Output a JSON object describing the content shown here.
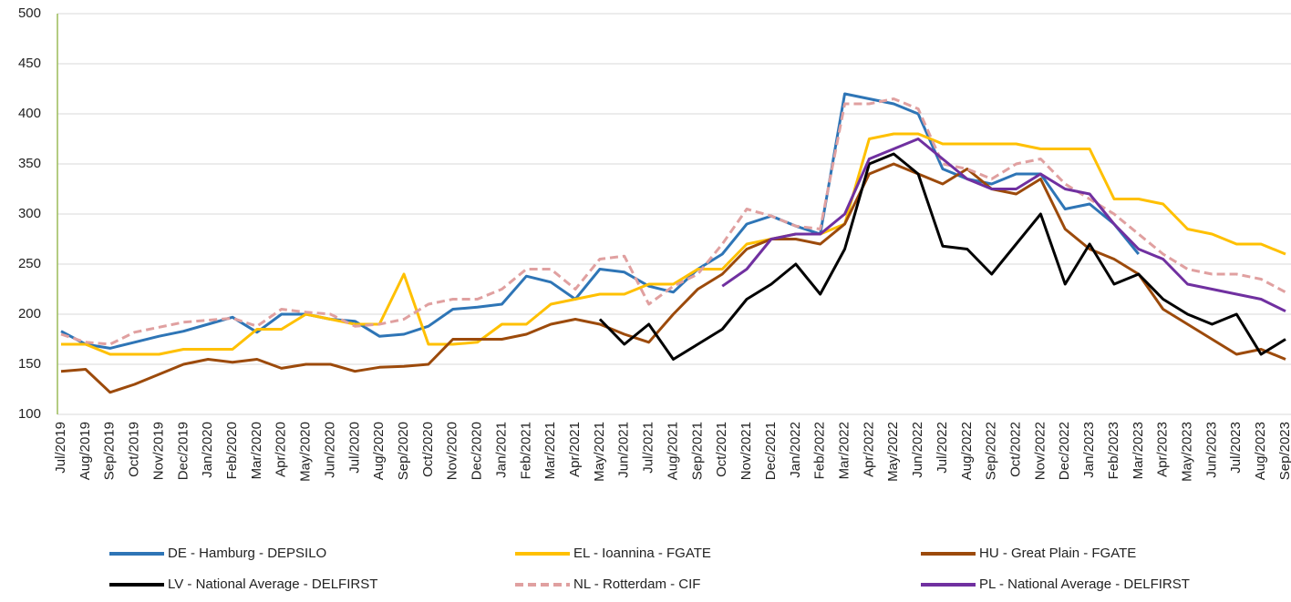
{
  "chart_data": {
    "type": "line",
    "categories": [
      "Jul/2019",
      "Aug/2019",
      "Sep/2019",
      "Oct/2019",
      "Nov/2019",
      "Dec/2019",
      "Jan/2020",
      "Feb/2020",
      "Mar/2020",
      "Apr/2020",
      "May/2020",
      "Jun/2020",
      "Jul/2020",
      "Aug/2020",
      "Sep/2020",
      "Oct/2020",
      "Nov/2020",
      "Dec/2020",
      "Jan/2021",
      "Feb/2021",
      "Mar/2021",
      "Apr/2021",
      "May/2021",
      "Jun/2021",
      "Jul/2021",
      "Aug/2021",
      "Sep/2021",
      "Oct/2021",
      "Nov/2021",
      "Dec/2021",
      "Jan/2022",
      "Feb/2022",
      "Mar/2022",
      "Apr/2022",
      "May/2022",
      "Jun/2022",
      "Jul/2022",
      "Aug/2022",
      "Sep/2022",
      "Oct/2022",
      "Nov/2022",
      "Dec/2022",
      "Jan/2023",
      "Feb/2023",
      "Mar/2023",
      "Apr/2023",
      "May/2023",
      "Jun/2023",
      "Jul/2023",
      "Aug/2023",
      "Sep/2023"
    ],
    "series": [
      {
        "name": "DE - Hamburg - DEPSILO",
        "color": "#2e75b6",
        "values": [
          183,
          170,
          166,
          172,
          178,
          183,
          190,
          197,
          182,
          200,
          200,
          195,
          193,
          178,
          180,
          188,
          205,
          207,
          210,
          238,
          232,
          215,
          245,
          242,
          228,
          222,
          245,
          260,
          290,
          298,
          288,
          280,
          420,
          415,
          410,
          400,
          345,
          335,
          330,
          340,
          340,
          305,
          310,
          290,
          260,
          null,
          null,
          null,
          null,
          null,
          null
        ]
      },
      {
        "name": "EL - Ioannina - FGATE",
        "color": "#ffc000",
        "values": [
          170,
          170,
          160,
          160,
          160,
          165,
          165,
          165,
          185,
          185,
          200,
          195,
          190,
          190,
          240,
          170,
          170,
          172,
          190,
          190,
          210,
          215,
          220,
          220,
          230,
          230,
          245,
          245,
          270,
          275,
          280,
          280,
          290,
          375,
          380,
          380,
          370,
          370,
          370,
          370,
          365,
          365,
          365,
          315,
          315,
          310,
          285,
          280,
          270,
          270,
          260
        ]
      },
      {
        "name": "HU - Great Plain - FGATE",
        "color": "#9c4a0b",
        "values": [
          143,
          145,
          122,
          130,
          140,
          150,
          155,
          152,
          155,
          146,
          150,
          150,
          143,
          147,
          148,
          150,
          175,
          175,
          175,
          180,
          190,
          195,
          190,
          180,
          172,
          200,
          225,
          240,
          265,
          275,
          275,
          270,
          290,
          340,
          350,
          340,
          330,
          345,
          325,
          320,
          335,
          285,
          265,
          255,
          240,
          205,
          190,
          175,
          160,
          165,
          155
        ]
      },
      {
        "name": "LV - National Average - DELFIRST",
        "color": "#000000",
        "values": [
          null,
          null,
          null,
          null,
          null,
          null,
          null,
          null,
          null,
          null,
          null,
          null,
          null,
          null,
          null,
          null,
          null,
          null,
          null,
          null,
          null,
          null,
          195,
          170,
          190,
          155,
          170,
          185,
          215,
          230,
          250,
          220,
          265,
          350,
          360,
          340,
          268,
          265,
          240,
          270,
          300,
          230,
          270,
          230,
          240,
          215,
          200,
          190,
          200,
          160,
          175
        ]
      },
      {
        "name": "NL - Rotterdam - CIF",
        "color": "#e0a0a0",
        "dashed": true,
        "values": [
          180,
          172,
          170,
          182,
          187,
          192,
          194,
          196,
          188,
          205,
          202,
          200,
          188,
          190,
          195,
          210,
          215,
          215,
          225,
          245,
          245,
          225,
          255,
          258,
          210,
          228,
          240,
          270,
          305,
          298,
          288,
          285,
          410,
          410,
          415,
          405,
          350,
          345,
          335,
          350,
          355,
          330,
          315,
          300,
          280,
          260,
          245,
          240,
          240,
          235,
          222
        ]
      },
      {
        "name": "PL - National Average - DELFIRST",
        "color": "#7030a0",
        "values": [
          null,
          null,
          null,
          null,
          null,
          null,
          null,
          null,
          null,
          null,
          null,
          null,
          null,
          null,
          null,
          null,
          null,
          null,
          null,
          null,
          null,
          null,
          null,
          null,
          null,
          null,
          null,
          228,
          245,
          275,
          280,
          280,
          300,
          355,
          365,
          375,
          355,
          335,
          325,
          325,
          340,
          325,
          320,
          290,
          265,
          255,
          230,
          225,
          220,
          215,
          203
        ]
      }
    ],
    "ylim": [
      100,
      500
    ],
    "yticks": [
      100,
      150,
      200,
      250,
      300,
      350,
      400,
      450,
      500
    ],
    "grid": true
  }
}
